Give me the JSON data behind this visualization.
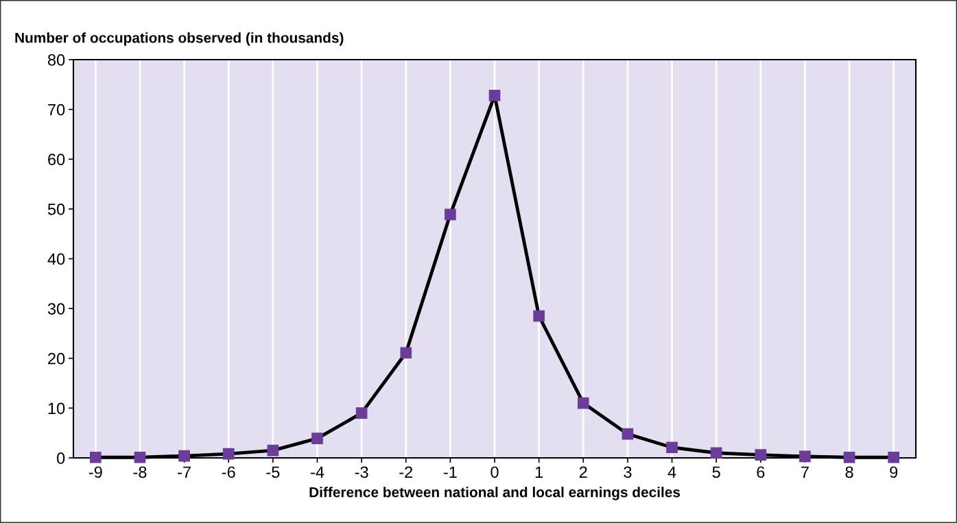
{
  "chart_data": {
    "type": "line",
    "ylabel": "Number of occupations observed (in thousands)",
    "xlabel": "Difference between national and local earnings deciles",
    "x": [
      -9,
      -8,
      -7,
      -6,
      -5,
      -4,
      -3,
      -2,
      -1,
      0,
      1,
      2,
      3,
      4,
      5,
      6,
      7,
      8,
      9
    ],
    "series": [
      {
        "color": "#000000",
        "values": [
          0.1,
          0.1,
          0.4,
          0.8,
          1.5,
          3.9,
          9.0,
          21.1,
          48.9,
          72.8,
          28.5,
          11.0,
          4.8,
          2.1,
          1.0,
          0.6,
          0.3,
          0.1,
          0.1
        ]
      }
    ],
    "marker": "square",
    "line_style": "solid",
    "grid": "x",
    "xlim": [
      -9.5,
      9.5
    ],
    "xticks": [
      -9,
      -8,
      -7,
      -6,
      -5,
      -4,
      -3,
      -2,
      -1,
      0,
      1,
      2,
      3,
      4,
      5,
      6,
      7,
      8,
      9
    ],
    "ylim": [
      0,
      80
    ],
    "yticks": [
      0,
      10,
      20,
      30,
      40,
      50,
      60,
      70,
      80
    ]
  }
}
